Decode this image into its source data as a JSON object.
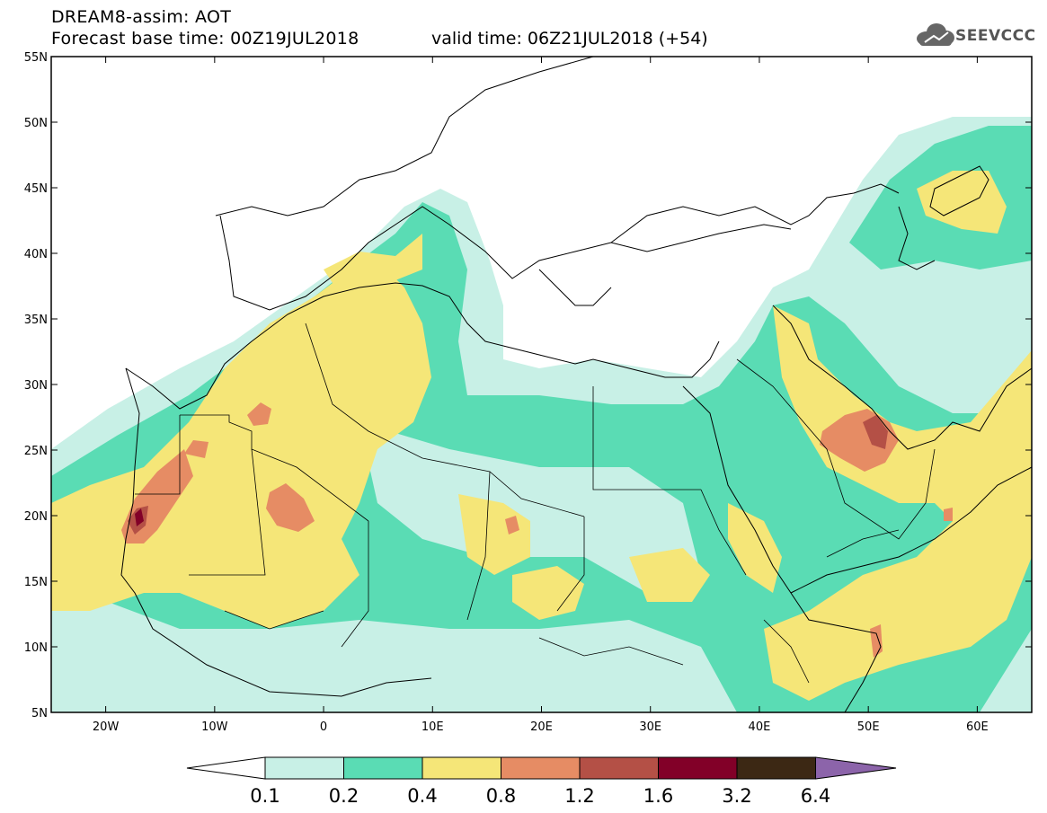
{
  "header": {
    "title": "DREAM8-assim: AOT",
    "base_time": "Forecast base time: 00Z19JUL2018",
    "valid_time": "valid time: 06Z21JUL2018 (+54)"
  },
  "logo": {
    "text": "SEEVCCC",
    "icon": "cloud-icon"
  },
  "map": {
    "projection": "lat-lon",
    "lon_range": [
      -25,
      65
    ],
    "lat_range": [
      5,
      55
    ],
    "lat_ticks": [
      {
        "value": 55,
        "label": "55N"
      },
      {
        "value": 50,
        "label": "50N"
      },
      {
        "value": 45,
        "label": "45N"
      },
      {
        "value": 40,
        "label": "40N"
      },
      {
        "value": 35,
        "label": "35N"
      },
      {
        "value": 30,
        "label": "30N"
      },
      {
        "value": 25,
        "label": "25N"
      },
      {
        "value": 20,
        "label": "20N"
      },
      {
        "value": 15,
        "label": "15N"
      },
      {
        "value": 10,
        "label": "10N"
      },
      {
        "value": 5,
        "label": "5N"
      }
    ],
    "lon_ticks": [
      {
        "value": -20,
        "label": "20W"
      },
      {
        "value": -10,
        "label": "10W"
      },
      {
        "value": 0,
        "label": "0"
      },
      {
        "value": 10,
        "label": "10E"
      },
      {
        "value": 20,
        "label": "20E"
      },
      {
        "value": 30,
        "label": "30E"
      },
      {
        "value": 40,
        "label": "40E"
      },
      {
        "value": 50,
        "label": "50E"
      },
      {
        "value": 60,
        "label": "60E"
      }
    ],
    "variable": "Aerosol optical thickness"
  },
  "colorbar": {
    "levels": [
      "0.1",
      "0.2",
      "0.4",
      "0.8",
      "1.2",
      "1.6",
      "3.2",
      "6.4"
    ],
    "colors": [
      "#ffffff",
      "#c8f0e6",
      "#5adcb4",
      "#f5e678",
      "#e68c64",
      "#b45046",
      "#820028",
      "#3c2814",
      "#8c64aa"
    ]
  }
}
